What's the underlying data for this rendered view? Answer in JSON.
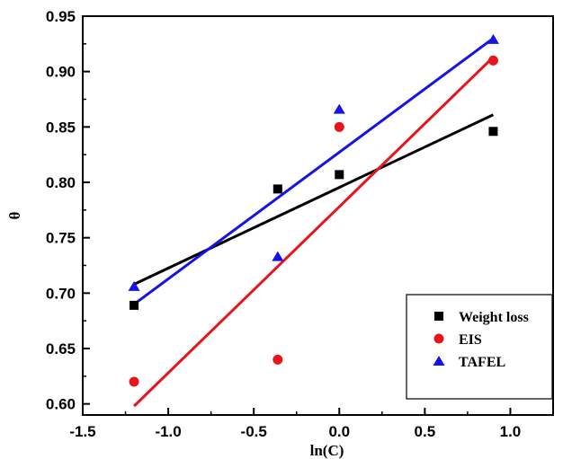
{
  "chart_data": {
    "type": "scatter",
    "title": "",
    "xlabel": "ln(C)",
    "ylabel": "θ",
    "xlim": [
      -1.5,
      1.25
    ],
    "ylim": [
      0.59,
      0.95
    ],
    "xticks": [
      "-1.5",
      "-1.0",
      "-0.5",
      "0.0",
      "0.5",
      "1.0"
    ],
    "yticks": [
      "0.60",
      "0.65",
      "0.70",
      "0.75",
      "0.80",
      "0.85",
      "0.90",
      "0.95"
    ],
    "grid": false,
    "legend_position": "bottom-right",
    "series": [
      {
        "name": "Weight loss",
        "marker": "square",
        "color": "#000000",
        "x": [
          -1.2,
          -0.36,
          0.0,
          0.9
        ],
        "y": [
          0.689,
          0.794,
          0.807,
          0.846
        ],
        "fit": {
          "x": [
            -1.2,
            0.9
          ],
          "y": [
            0.708,
            0.861
          ]
        }
      },
      {
        "name": "EIS",
        "marker": "circle",
        "color": "#e8141b",
        "x": [
          -1.2,
          -0.36,
          0.0,
          0.9
        ],
        "y": [
          0.62,
          0.64,
          0.85,
          0.91
        ],
        "fit": {
          "x": [
            -1.2,
            0.9
          ],
          "y": [
            0.598,
            0.913
          ]
        }
      },
      {
        "name": "TAFEL",
        "marker": "triangle",
        "color": "#1414e6",
        "x": [
          -1.2,
          -0.36,
          0.0,
          0.9
        ],
        "y": [
          0.706,
          0.733,
          0.866,
          0.929
        ],
        "fit": {
          "x": [
            -1.2,
            0.9
          ],
          "y": [
            0.69,
            0.93
          ]
        }
      }
    ]
  }
}
